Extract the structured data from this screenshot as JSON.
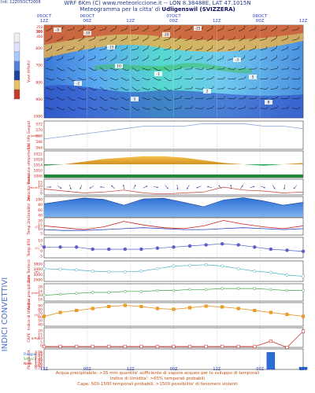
{
  "header": {
    "line1": "WRF 6Km (C) www.meteoriccione.it -- LON 8.38488E, LAT 47.1015N",
    "line2_prefix": "Meteogramma per la citta' di ",
    "line2_city": "Udligenswil (SVIZZERA)",
    "run_info": "Init: 12Z05OCT2008"
  },
  "time_axis": {
    "top_labels": [
      [
        "12Z",
        "05OCT"
      ],
      [
        "00Z",
        "06OCT"
      ],
      [
        "12Z",
        ""
      ],
      [
        "00Z",
        "07OCT"
      ],
      [
        "12Z",
        ""
      ],
      [
        "00Z",
        "08OCT"
      ],
      [
        "12Z",
        ""
      ]
    ],
    "bottom_labels": [
      [
        "12Z",
        "05OCT",
        "2008"
      ],
      [
        "00Z",
        "06OCT",
        ""
      ],
      [
        "12Z",
        ""
      ],
      [
        "00Z",
        "07OCT",
        ""
      ],
      [
        "12Z",
        ""
      ],
      [
        "00Z",
        "08OCT",
        ""
      ],
      [
        "12Z",
        ""
      ]
    ]
  },
  "side_label": "INDICI CONVETTIVI",
  "footer": {
    "line1": "Acqua precipitabile: >35 mm quantita' sufficiente di vapore acqueo per lo sviluppo di temporali",
    "line2": "Indice di Umidita': >65% temporali probabili",
    "line3": "Cape: 500-1500 temporali probabili, >1500 possibilita' di fenomeni violenti"
  },
  "colors": {
    "accent_blue": "#2a3fbf",
    "label_red": "#c8201c",
    "label_orange": "#c05010",
    "grid": "#8a8a8a"
  },
  "chart_data": [
    {
      "type": "heatmap",
      "title": "",
      "ylabel": "Vvel (hPa/h)",
      "y_ticks": [
        "500",
        "600",
        "700",
        "800",
        "900",
        "1000"
      ],
      "y_ticks_top": [
        "250",
        "300",
        "400"
      ],
      "annotations": [
        "-5",
        "-10",
        "-15",
        "-20",
        "-25",
        "-2",
        "-1",
        "-3",
        "1",
        "2",
        "5",
        "8",
        "10"
      ],
      "note": "temperature, humidity, wind barbs cross section"
    },
    {
      "type": "line",
      "ylabel": "500 hPa Geopot",
      "unit": "dam",
      "y_ticks": [
        "572",
        "570",
        "568",
        "566",
        "564"
      ],
      "ylim": [
        562,
        573
      ],
      "values": [
        566,
        567,
        568,
        569,
        570,
        571,
        571,
        571,
        572,
        572,
        572,
        571,
        571,
        570
      ]
    },
    {
      "type": "area",
      "ylabel": "Pressione atmosferica",
      "unit": "hPa",
      "y_ticks": [
        "1022",
        "1018",
        "1014",
        "1010",
        "1006"
      ],
      "ylim": [
        1004,
        1024
      ],
      "values": [
        1013,
        1014,
        1016,
        1018,
        1019,
        1020,
        1020,
        1019,
        1017,
        1015,
        1014,
        1013,
        1014,
        1015
      ]
    },
    {
      "type": "line",
      "ylabel": "Velocita Vento",
      "unit": "Km/h",
      "y_ticks": [
        "15",
        "10",
        "5",
        "0"
      ],
      "ylim": [
        0,
        16
      ],
      "values": [
        6,
        4,
        2,
        3,
        5,
        2,
        1,
        2,
        3,
        8,
        5,
        4,
        2,
        3
      ]
    },
    {
      "type": "area",
      "ylabel": "Umidita' 2m",
      "unit": "%",
      "y_ticks": [
        "100",
        "80",
        "60",
        "40"
      ],
      "ylim": [
        30,
        100
      ],
      "values": [
        75,
        85,
        95,
        90,
        70,
        92,
        94,
        80,
        65,
        88,
        96,
        85,
        70,
        80
      ]
    },
    {
      "type": "line",
      "ylabel": "Temp 2m",
      "unit": "C",
      "y_ticks": [
        "20",
        "15",
        "10",
        "5"
      ],
      "ylim": [
        3,
        22
      ],
      "series": [
        {
          "name": "",
          "values": [
            13,
            11,
            9,
            12,
            18,
            14,
            11,
            10,
            13,
            19,
            15,
            12,
            10,
            13
          ]
        },
        {
          "name": "",
          "values": [
            9,
            8,
            8,
            9,
            10,
            11,
            10,
            9,
            9,
            10,
            11,
            10,
            9,
            10
          ]
        }
      ]
    },
    {
      "type": "line",
      "ylabel": "Temp 850",
      "unit": "C",
      "y_ticks": [
        "10",
        "5",
        "0",
        "-5"
      ],
      "ylim": [
        -7,
        12
      ],
      "values": [
        3,
        3,
        3,
        1,
        1,
        1,
        1,
        2,
        3,
        4,
        5,
        6,
        5,
        3,
        1,
        0,
        -1
      ]
    },
    {
      "type": "line",
      "ylabel": "Zero Termico",
      "unit": "m",
      "y_ticks": [
        "3800",
        "3400",
        "3000",
        "2600"
      ],
      "ylim": [
        2400,
        4000
      ],
      "values": [
        3400,
        3350,
        3300,
        3200,
        3150,
        3150,
        3200,
        3400,
        3600,
        3650,
        3700,
        3600,
        3400,
        3200,
        3100,
        2900,
        2800
      ]
    },
    {
      "type": "line",
      "ylabel": "Acqua precipitabile",
      "unit": "mm",
      "y_ticks": [
        "28",
        "24",
        "20",
        "16"
      ],
      "ylim": [
        12,
        30
      ],
      "values": [
        18,
        19,
        20,
        21,
        21,
        22,
        22,
        23,
        23,
        24,
        24,
        25,
        25,
        25,
        24,
        23,
        23
      ]
    },
    {
      "type": "line",
      "ylabel": "Indice di Umidita'",
      "unit": "%",
      "y_ticks": [
        "90",
        "80",
        "70",
        "60",
        "50",
        "40"
      ],
      "ylim": [
        35,
        95
      ],
      "values": [
        60,
        70,
        75,
        80,
        85,
        88,
        85,
        80,
        78,
        82,
        86,
        84,
        80,
        75,
        70,
        65,
        60
      ]
    },
    {
      "type": "line",
      "ylabel": "CAPE",
      "unit": "J/Kg",
      "y_ticks": [
        "20",
        "15",
        "10",
        "5",
        "0"
      ],
      "ylim": [
        0,
        22
      ],
      "values": [
        1,
        1,
        1,
        1,
        1,
        1,
        1,
        1,
        1,
        1,
        1,
        1,
        1,
        1,
        7,
        0,
        18
      ]
    },
    {
      "type": "bar",
      "ylabel": "Pioggia tot.",
      "unit": "mm",
      "legend": [
        "Pioggia",
        "Scrosci",
        "Neve"
      ],
      "y_ticks": [
        "3.56",
        "3.15",
        "2.73",
        "2.31",
        "1.89",
        "1.47",
        "1.06",
        "0.64",
        "0.22"
      ],
      "ylim": [
        0,
        3.6
      ],
      "values": [
        0,
        0,
        0,
        0,
        0,
        0,
        0,
        0,
        0,
        0,
        0,
        0,
        0,
        0,
        3.0,
        0,
        0.4
      ]
    }
  ]
}
